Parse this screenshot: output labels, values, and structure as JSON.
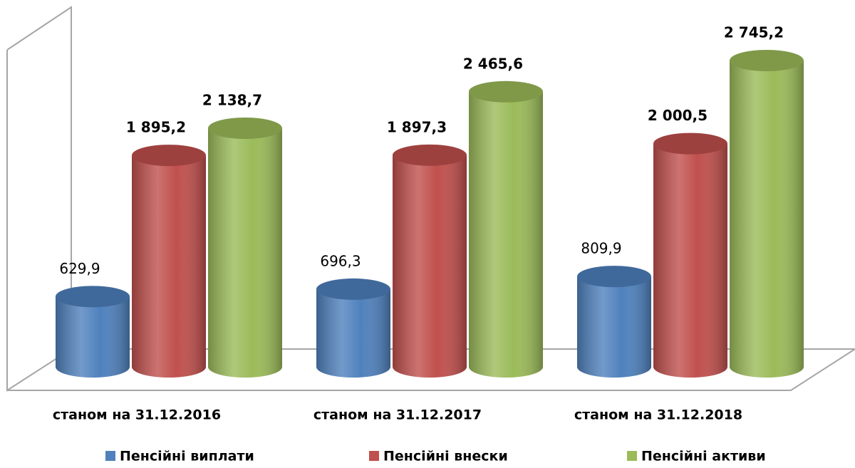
{
  "chart_data": {
    "type": "bar3d",
    "categories": [
      "станом на 31.12.2016",
      "станом на 31.12.2017",
      "станом на 31.12.2018"
    ],
    "series": [
      {
        "name": "Пенсійні виплати",
        "color": "#4f81bd",
        "values": [
          629.9,
          696.3,
          809.9
        ],
        "value_labels": [
          "629,9",
          "696,3",
          "809,9"
        ]
      },
      {
        "name": "Пенсійні внески",
        "color": "#c0504d",
        "values": [
          1895.2,
          1897.3,
          2000.5
        ],
        "value_labels": [
          "1 895,2",
          "1 897,3",
          "2 000,5"
        ]
      },
      {
        "name": "Пенсійні активи",
        "color": "#9bbb59",
        "values": [
          2138.7,
          2465.6,
          2745.2
        ],
        "value_labels": [
          "2 138,7",
          "2 465,6",
          "2 745,2"
        ]
      }
    ],
    "legend": "bottom"
  }
}
